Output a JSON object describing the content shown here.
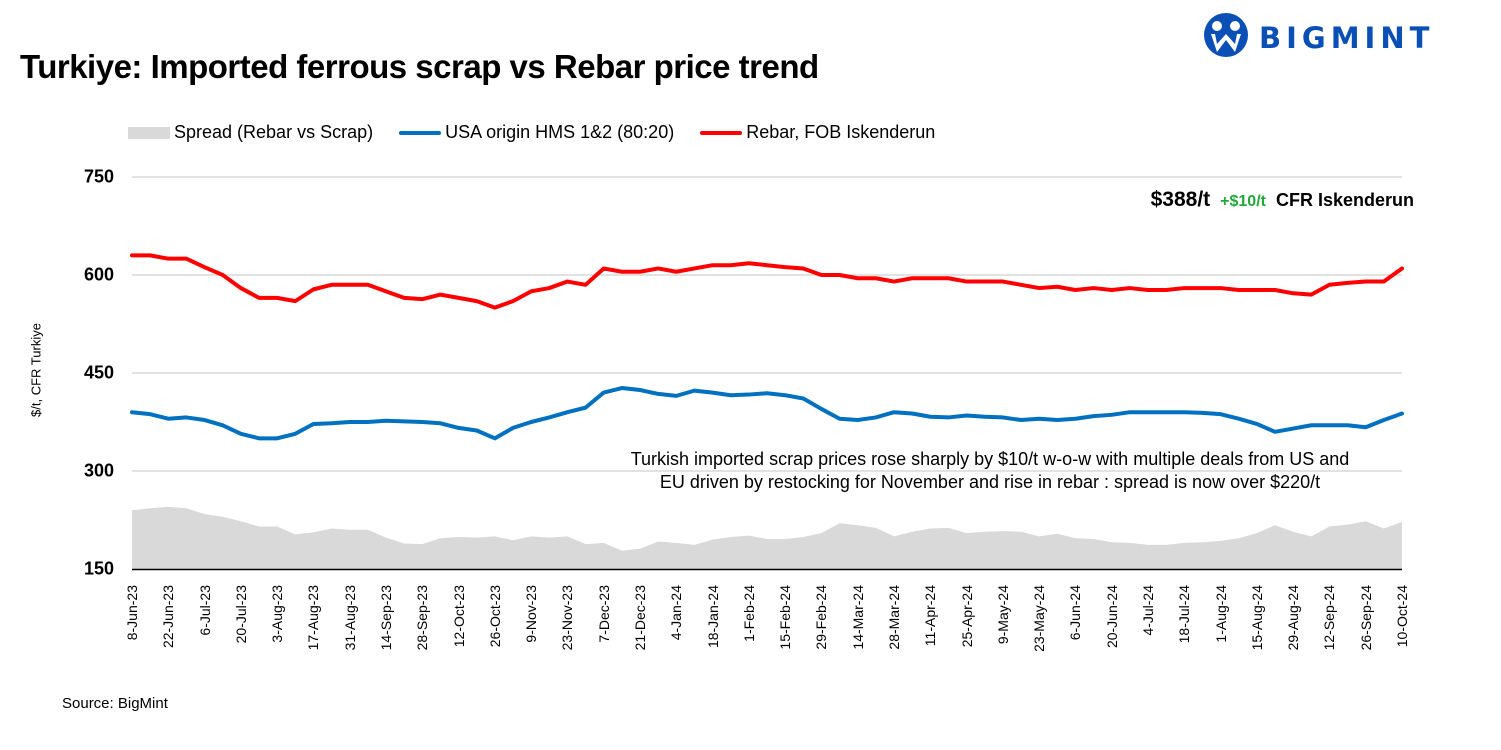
{
  "title": "Turkiye: Imported ferrous scrap vs Rebar price trend",
  "logo_text": "BIGMINT",
  "source": "Source: BigMint",
  "callout": {
    "price": "$388/t",
    "change": "+$10/t",
    "location": "CFR Iskenderun"
  },
  "note_lines": [
    "Turkish imported scrap prices rose sharply by $10/t  w-o-w with multiple deals from US and",
    "EU driven by restocking for November  and rise in rebar : spread is now over $220/t"
  ],
  "colors": {
    "spread": "#d9d9d9",
    "scrap": "#0070c0",
    "rebar": "#ff0000",
    "brand": "#0a4fb5",
    "change": "#22a83a"
  },
  "chart_data": {
    "type": "line",
    "title": "Turkiye: Imported ferrous scrap vs Rebar price trend",
    "ylabel": "$/t, CFR Turkiye",
    "xlabel": "",
    "ylim": [
      150,
      750
    ],
    "yticks": [
      150,
      300,
      450,
      600,
      750
    ],
    "grid": "horizontal",
    "legend": "top",
    "xtick_labels": [
      "8-Jun-23",
      "22-Jun-23",
      "6-Jul-23",
      "20-Jul-23",
      "3-Aug-23",
      "17-Aug-23",
      "31-Aug-23",
      "14-Sep-23",
      "28-Sep-23",
      "12-Oct-23",
      "26-Oct-23",
      "9-Nov-23",
      "23-Nov-23",
      "7-Dec-23",
      "21-Dec-23",
      "4-Jan-24",
      "18-Jan-24",
      "1-Feb-24",
      "15-Feb-24",
      "29-Feb-24",
      "14-Mar-24",
      "28-Mar-24",
      "11-Apr-24",
      "25-Apr-24",
      "9-May-24",
      "23-May-24",
      "6-Jun-24",
      "20-Jun-24",
      "4-Jul-24",
      "18-Jul-24",
      "1-Aug-24",
      "15-Aug-24",
      "29-Aug-24",
      "12-Sep-24",
      "26-Sep-24",
      "10-Oct-24"
    ],
    "x_frequency": "weekly",
    "series": [
      {
        "name": "Spread (Rebar vs Scrap)",
        "kind": "area",
        "values": [
          240,
          243,
          245,
          243,
          234,
          230,
          223,
          215,
          215,
          203,
          206,
          212,
          210,
          210,
          198,
          189,
          188,
          197,
          199,
          198,
          200,
          194,
          200,
          198,
          200,
          188,
          190,
          178,
          181,
          192,
          190,
          187,
          195,
          199,
          201,
          196,
          196,
          199,
          205,
          220,
          217,
          213,
          200,
          207,
          212,
          213,
          205,
          207,
          208,
          207,
          200,
          204,
          197,
          196,
          191,
          190,
          187,
          187,
          190,
          191,
          193,
          197,
          205,
          217,
          207,
          200,
          215,
          218,
          223,
          212,
          222
        ]
      },
      {
        "name": "USA origin HMS 1&2 (80:20)",
        "kind": "line",
        "values": [
          390,
          387,
          380,
          382,
          378,
          370,
          357,
          350,
          350,
          357,
          372,
          373,
          375,
          375,
          377,
          376,
          375,
          373,
          366,
          362,
          350,
          366,
          375,
          382,
          390,
          397,
          420,
          427,
          424,
          418,
          415,
          423,
          420,
          416,
          417,
          419,
          416,
          411,
          395,
          380,
          378,
          382,
          390,
          388,
          383,
          382,
          385,
          383,
          382,
          378,
          380,
          378,
          380,
          384,
          386,
          390,
          390,
          390,
          390,
          389,
          387,
          380,
          372,
          360,
          365,
          370,
          370,
          370,
          367,
          378,
          388
        ]
      },
      {
        "name": "Rebar, FOB Iskenderun",
        "kind": "line",
        "values": [
          630,
          630,
          625,
          625,
          612,
          600,
          580,
          565,
          565,
          560,
          578,
          585,
          585,
          585,
          575,
          565,
          563,
          570,
          565,
          560,
          550,
          560,
          575,
          580,
          590,
          585,
          610,
          605,
          605,
          610,
          605,
          610,
          615,
          615,
          618,
          615,
          612,
          610,
          600,
          600,
          595,
          595,
          590,
          595,
          595,
          595,
          590,
          590,
          590,
          585,
          580,
          582,
          577,
          580,
          577,
          580,
          577,
          577,
          580,
          580,
          580,
          577,
          577,
          577,
          572,
          570,
          585,
          588,
          590,
          590,
          610
        ]
      }
    ]
  }
}
